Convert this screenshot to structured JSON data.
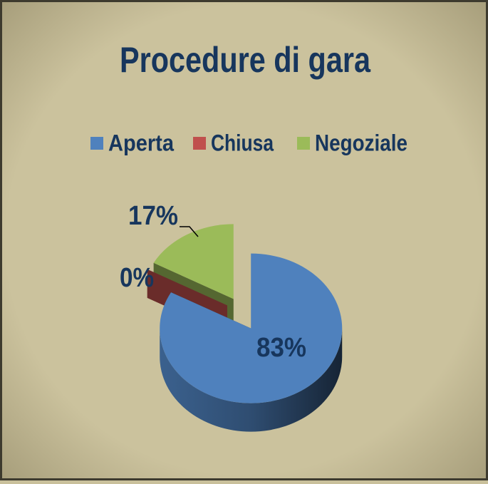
{
  "chart_data": {
    "type": "pie",
    "title": "Procedure di gara",
    "categories": [
      "Aperta",
      "Chiusa",
      "Negoziale"
    ],
    "values": [
      83,
      0,
      17
    ],
    "value_labels": [
      "83%",
      "0%",
      "17%"
    ],
    "colors": [
      "#4f81bd",
      "#c0504d",
      "#9bbb59"
    ],
    "legend": "top"
  }
}
